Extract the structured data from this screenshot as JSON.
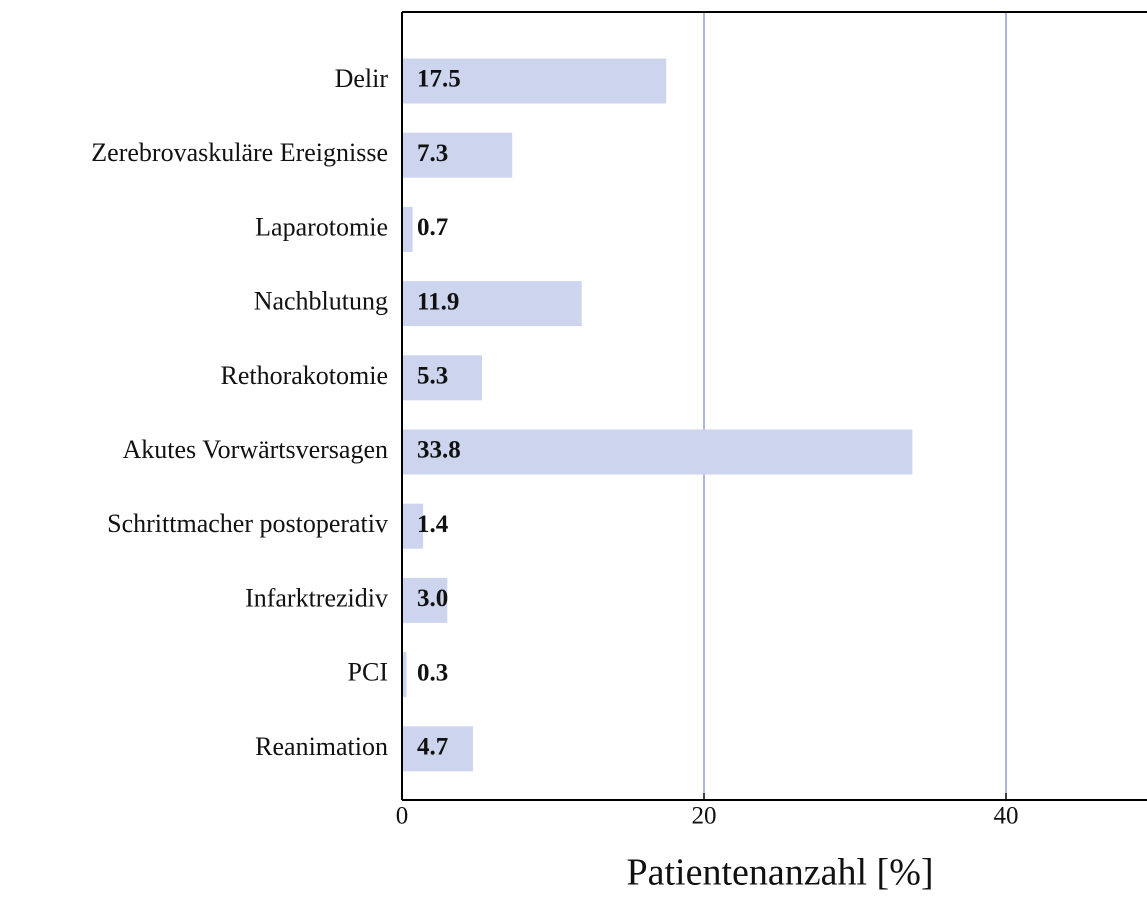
{
  "chart_data": {
    "type": "barh",
    "categories": [
      "Delir",
      "Zerebrovaskuläre Ereignisse",
      "Laparotomie",
      "Nachblutung",
      "Rethorakotomie",
      "Akutes Vorwärtsversagen",
      "Schrittmacher postoperativ",
      "Infarktrezidiv",
      "PCI",
      "Reanimation"
    ],
    "values": [
      17.5,
      7.3,
      0.7,
      11.9,
      5.3,
      33.8,
      1.4,
      3.0,
      0.3,
      4.7
    ],
    "value_labels": [
      "17.5",
      "7.3",
      "0.7",
      "11.9",
      "5.3",
      "33.8",
      "1.4",
      "3.0",
      "0.3",
      "4.7"
    ],
    "color": "#ccd5ed",
    "xlabel": "Patientenanzahl [%]",
    "xlim": [
      0,
      50
    ],
    "xticks": [
      0,
      20,
      40
    ],
    "grid": true,
    "grid_color": "#5a6fb3"
  }
}
